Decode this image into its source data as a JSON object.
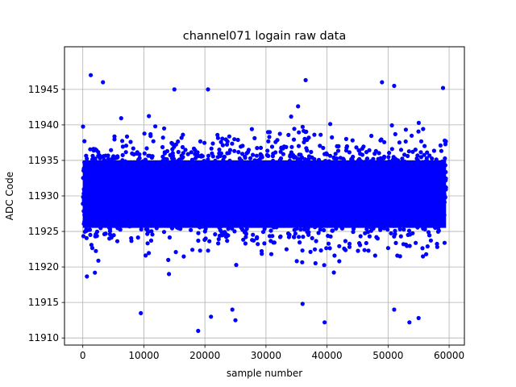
{
  "chart_data": {
    "type": "scatter",
    "title": "channel071 logain raw data",
    "xlabel": "sample number",
    "ylabel": "ADC Code",
    "xlim": [
      -3000,
      62500
    ],
    "ylim": [
      11909,
      11951
    ],
    "xticks": [
      0,
      10000,
      20000,
      30000,
      40000,
      50000,
      60000
    ],
    "yticks": [
      11910,
      11915,
      11920,
      11925,
      11930,
      11935,
      11940,
      11945
    ],
    "xtick_labels": [
      "0",
      "10000",
      "20000",
      "30000",
      "40000",
      "50000",
      "60000"
    ],
    "ytick_labels": [
      "11910",
      "11915",
      "11920",
      "11925",
      "11930",
      "11935",
      "11940",
      "11945"
    ],
    "grid": true,
    "marker_color": "#0000ff",
    "n_samples": 59500,
    "distribution": {
      "mean": 11930.5,
      "std": 3.4,
      "min": 11911,
      "max": 11947
    },
    "outliers": [
      {
        "x": 1300,
        "y": 11947
      },
      {
        "x": 3300,
        "y": 11946
      },
      {
        "x": 36500,
        "y": 11946.3
      },
      {
        "x": 49000,
        "y": 11946
      },
      {
        "x": 51000,
        "y": 11945.5
      },
      {
        "x": 59000,
        "y": 11945.2
      },
      {
        "x": 20500,
        "y": 11945
      },
      {
        "x": 15000,
        "y": 11945
      },
      {
        "x": 18900,
        "y": 11911
      },
      {
        "x": 39600,
        "y": 11912.2
      },
      {
        "x": 53500,
        "y": 11912.2
      },
      {
        "x": 25000,
        "y": 11912.5
      },
      {
        "x": 55000,
        "y": 11912.8
      },
      {
        "x": 21000,
        "y": 11913
      },
      {
        "x": 9500,
        "y": 11913.5
      },
      {
        "x": 24500,
        "y": 11914
      },
      {
        "x": 36000,
        "y": 11914.8
      },
      {
        "x": 51000,
        "y": 11914
      }
    ]
  }
}
